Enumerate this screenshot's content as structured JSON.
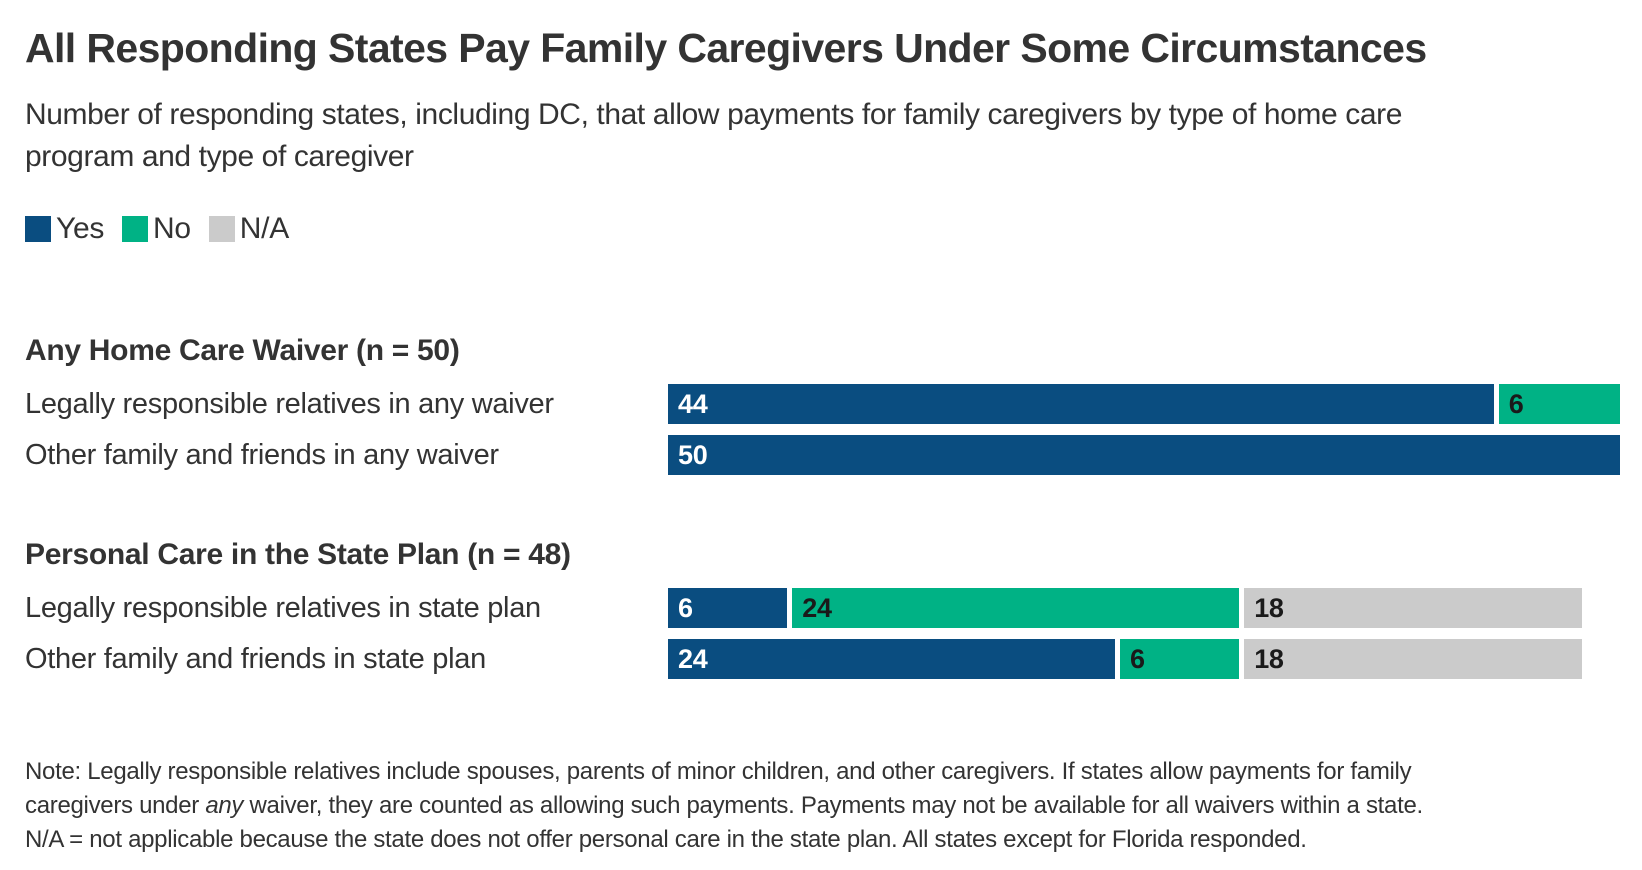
{
  "header": {
    "title": "All Responding States Pay Family Caregivers Under Some Circumstances",
    "subtitle": "Number of responding states, including DC, that allow payments for family caregivers by type of home care\nprogram and type of caregiver"
  },
  "chart_data": {
    "type": "bar",
    "orientation": "horizontal",
    "stacked": true,
    "title": "All Responding States Pay Family Caregivers Under Some Circumstances",
    "xlabel": "",
    "ylabel": "",
    "xlim": [
      0,
      50
    ],
    "grid": false,
    "legend_position": "top-left",
    "legend": [
      {
        "label": "Yes",
        "color": "#0a4d80",
        "value_text_color": "#ffffff"
      },
      {
        "label": "No",
        "color": "#00b285",
        "value_text_color": "#1a1a1a"
      },
      {
        "label": "N/A",
        "color": "#cbcbcb",
        "value_text_color": "#1a1a1a"
      }
    ],
    "categories": [
      "Legally responsible relatives in any waiver",
      "Other family and friends in any waiver",
      "Legally responsible relatives in state plan",
      "Other family and friends in state plan"
    ],
    "series": [
      {
        "name": "Yes",
        "values": [
          44,
          50,
          6,
          24
        ]
      },
      {
        "name": "No",
        "values": [
          6,
          0,
          24,
          6
        ]
      },
      {
        "name": "N/A",
        "values": [
          0,
          0,
          18,
          18
        ]
      }
    ],
    "groups": [
      {
        "heading": "Any Home Care Waiver (n = 50)",
        "n": 50,
        "rows": [
          {
            "label": "Legally responsible relatives in any waiver",
            "segments": [
              {
                "series": "Yes",
                "value": 44
              },
              {
                "series": "No",
                "value": 6
              }
            ]
          },
          {
            "label": "Other family and friends in any waiver",
            "segments": [
              {
                "series": "Yes",
                "value": 50
              }
            ]
          }
        ]
      },
      {
        "heading": "Personal Care in the State Plan (n = 48)",
        "n": 48,
        "rows": [
          {
            "label": "Legally responsible relatives in state plan",
            "segments": [
              {
                "series": "Yes",
                "value": 6
              },
              {
                "series": "No",
                "value": 24
              },
              {
                "series": "N/A",
                "value": 18
              }
            ]
          },
          {
            "label": "Other family and friends in state plan",
            "segments": [
              {
                "series": "Yes",
                "value": 24
              },
              {
                "series": "No",
                "value": 6
              },
              {
                "series": "N/A",
                "value": 18
              }
            ]
          }
        ]
      }
    ]
  },
  "note": {
    "line1": "Note: Legally responsible relatives include spouses, parents of minor children, and other caregivers. If states allow payments for family",
    "line2_before_italic": "caregivers under ",
    "line2_italic": "any",
    "line2_after_italic": " waiver, they are counted as allowing such payments. Payments may not be available for all waivers within a state.",
    "line3": "N/A = not applicable because the state does not offer personal care in the state plan. All states except for Florida responded."
  }
}
